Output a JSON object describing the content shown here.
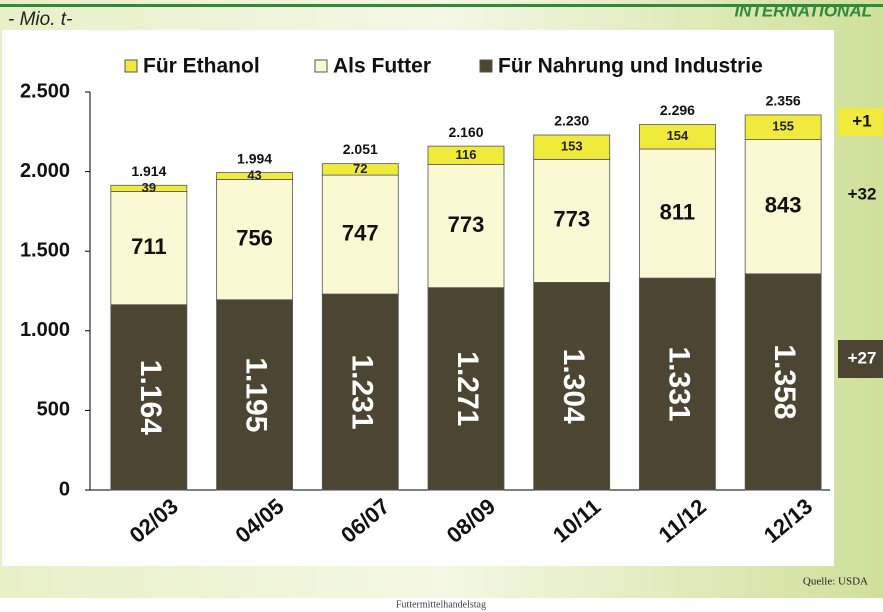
{
  "chart_data": {
    "type": "stacked_bar",
    "y_label": "- Mio. t-",
    "logo_text": "INTERNATIONAL",
    "categories": [
      "02/03",
      "04/05",
      "06/07",
      "08/09",
      "10/11",
      "11/12",
      "12/13"
    ],
    "series": [
      {
        "name": "Für Ethanol",
        "color": "#f0ea3c",
        "values": [
          39,
          43,
          72,
          116,
          153,
          154,
          155
        ],
        "value_labels": [
          "39",
          "43",
          "72",
          "116",
          "153",
          "154",
          "155"
        ]
      },
      {
        "name": "Als Futter",
        "color": "#fbf9d4",
        "values": [
          711,
          756,
          747,
          773,
          773,
          811,
          843
        ],
        "value_labels": [
          "711",
          "756",
          "747",
          "773",
          "773",
          "811",
          "843"
        ]
      },
      {
        "name": "Für Nahrung und Industrie",
        "color": "#4b4531",
        "values": [
          1164,
          1195,
          1231,
          1271,
          1304,
          1331,
          1358
        ],
        "value_labels": [
          "1.164",
          "1.195",
          "1.231",
          "1.271",
          "1.304",
          "1.331",
          "1.358"
        ]
      }
    ],
    "totals": {
      "values": [
        1914,
        1994,
        2051,
        2160,
        2230,
        2296,
        2356
      ],
      "value_labels": [
        "1.914",
        "1.994",
        "2.051",
        "2.160",
        "2.230",
        "2.296",
        "2.356"
      ]
    },
    "ylim": [
      0,
      2500
    ],
    "yticks": [
      0,
      500,
      {
        "value": 1000,
        "label": "1.000"
      },
      {
        "value": 1500,
        "label": "1.500"
      },
      {
        "value": 2000,
        "label": "2.000"
      },
      {
        "value": 2500,
        "label": "2.500"
      }
    ],
    "annotations": [
      "+1",
      "+32",
      "+27"
    ],
    "source": "Quelle: USDA",
    "footer": "Futtermittelhandelstag"
  }
}
